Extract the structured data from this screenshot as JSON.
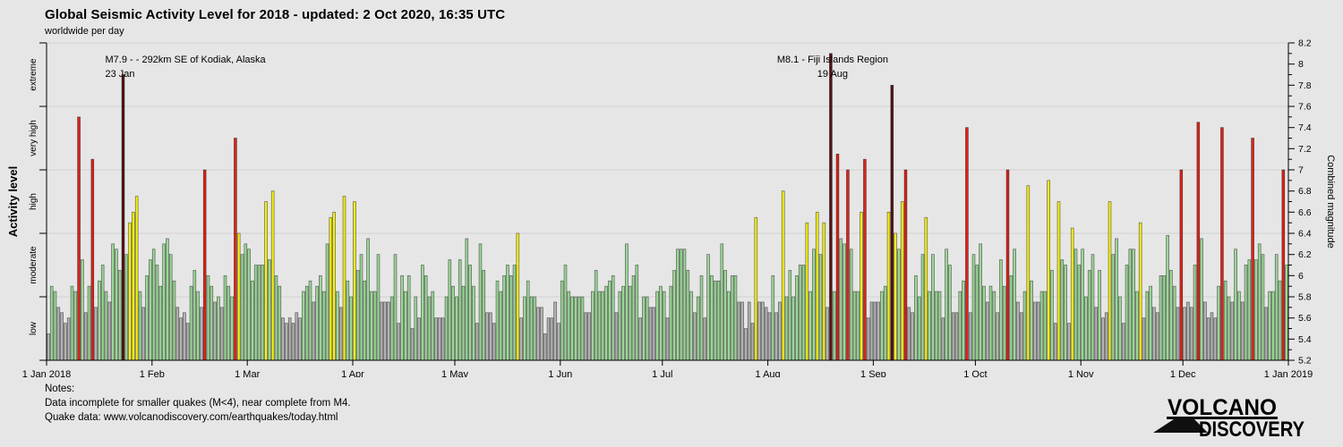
{
  "header": {
    "title": "Global Seismic Activity Level for 2018 - updated:  2 Oct 2020, 16:35 UTC",
    "subtitle": "worldwide per day"
  },
  "notes": {
    "label": "Notes:",
    "line1": "Data incomplete for smaller quakes (M<4), near complete from M4.",
    "line2": "Quake data: www.volcanodiscovery.com/earthquakes/today.html"
  },
  "logo": {
    "line1": "VOLCANO",
    "line2": "DISCOVERY",
    "red": "#c2232a",
    "black": "#101010"
  },
  "colors": {
    "background": "#e6e6e6",
    "grid": "#d2d2d2",
    "axis": "#000000",
    "bar_outline": "rgba(0,0,0,0.55)",
    "annotation_text": "#1a1a1a"
  },
  "chart_data": {
    "type": "bar",
    "title": "Global Seismic Activity Level for 2018",
    "subtitle": "worldwide per day",
    "x_axis": {
      "tick_labels": [
        "1 Jan 2018",
        "1 Feb",
        "1 Mar",
        "1 Apr",
        "1 May",
        "1 Jun",
        "1 Jul",
        "1 Aug",
        "1 Sep",
        "1 Oct",
        "1 Nov",
        "1 Dec",
        "1 Jan 2019"
      ],
      "tick_day_offsets": [
        0,
        31,
        59,
        90,
        120,
        151,
        181,
        212,
        243,
        273,
        304,
        334,
        365
      ]
    },
    "y_left": {
      "label": "Activity level",
      "categories": [
        "low",
        "moderate",
        "high",
        "very high",
        "extreme"
      ],
      "boundaries": [
        5.2,
        5.8,
        6.4,
        7.0,
        7.6,
        8.2
      ]
    },
    "y_right": {
      "label": "Combined magnitude",
      "min": 5.2,
      "max": 8.2,
      "major_step": 0.2,
      "minor_step": 0.1
    },
    "levels": [
      {
        "name": "low",
        "max": 5.8,
        "fill": "#b2b2b2"
      },
      {
        "name": "moderate",
        "max": 6.4,
        "fill": "#9bd697"
      },
      {
        "name": "high",
        "max": 7.0,
        "fill": "#f4ef19"
      },
      {
        "name": "very high",
        "max": 7.6,
        "fill": "#dc231a"
      },
      {
        "name": "extreme",
        "max": 99,
        "fill": "#571212"
      }
    ],
    "annotations": [
      {
        "label": "M7.9 - - 292km SE of Kodiak, Alaska",
        "date_label": "23 Jan",
        "day_index": 22,
        "align": "left"
      },
      {
        "label": "M8.1 - Fiji Islands Region",
        "date_label": "19 Aug",
        "day_index": 230,
        "align": "center"
      }
    ],
    "grid": true,
    "values": [
      5.45,
      5.9,
      5.85,
      5.7,
      5.65,
      5.55,
      5.6,
      5.9,
      5.85,
      7.5,
      6.15,
      5.65,
      5.9,
      7.1,
      5.7,
      5.95,
      6.1,
      5.85,
      5.75,
      6.3,
      6.25,
      6.05,
      7.9,
      6.2,
      6.5,
      6.6,
      6.75,
      5.85,
      5.7,
      6.0,
      6.15,
      6.25,
      6.1,
      5.9,
      6.3,
      6.35,
      6.2,
      5.95,
      5.7,
      5.6,
      5.65,
      5.55,
      5.9,
      6.05,
      5.85,
      5.7,
      7.0,
      6.0,
      5.9,
      5.75,
      5.8,
      5.7,
      6.0,
      5.9,
      5.8,
      7.3,
      6.4,
      6.2,
      6.3,
      6.25,
      5.95,
      6.1,
      6.1,
      6.1,
      6.7,
      6.15,
      6.8,
      6.0,
      5.9,
      5.6,
      5.55,
      5.6,
      5.55,
      5.65,
      5.6,
      5.85,
      5.9,
      5.95,
      5.75,
      5.9,
      6.0,
      5.85,
      6.3,
      6.55,
      6.6,
      5.85,
      5.7,
      6.75,
      5.95,
      5.8,
      6.7,
      6.05,
      6.2,
      5.95,
      6.35,
      5.85,
      5.85,
      6.2,
      5.75,
      5.75,
      5.75,
      5.8,
      6.2,
      5.55,
      6.0,
      5.85,
      6.0,
      5.5,
      5.8,
      5.6,
      6.1,
      6.0,
      5.8,
      5.85,
      5.6,
      5.6,
      5.6,
      5.8,
      6.15,
      5.9,
      5.8,
      6.15,
      5.9,
      6.35,
      6.1,
      5.9,
      5.55,
      6.3,
      6.05,
      5.65,
      5.65,
      5.55,
      5.95,
      5.85,
      6.0,
      6.1,
      6.0,
      6.1,
      6.4,
      5.6,
      5.8,
      5.95,
      5.8,
      5.8,
      5.7,
      5.7,
      5.45,
      5.6,
      5.6,
      5.75,
      5.55,
      5.95,
      6.1,
      5.85,
      5.8,
      5.8,
      5.8,
      5.8,
      5.65,
      5.65,
      5.85,
      6.05,
      5.85,
      5.85,
      5.9,
      5.95,
      6.0,
      5.65,
      5.85,
      5.9,
      6.3,
      5.9,
      6.0,
      6.1,
      5.6,
      5.8,
      5.8,
      5.7,
      5.7,
      5.85,
      5.9,
      5.85,
      5.6,
      5.9,
      6.05,
      6.25,
      6.25,
      6.25,
      6.05,
      5.85,
      5.65,
      5.8,
      6.0,
      5.6,
      6.2,
      6.0,
      5.95,
      5.95,
      6.3,
      6.05,
      5.85,
      6.0,
      6.0,
      5.75,
      5.75,
      5.5,
      5.75,
      5.55,
      6.55,
      5.75,
      5.75,
      5.7,
      5.65,
      6.0,
      5.65,
      5.75,
      6.8,
      5.8,
      6.05,
      5.8,
      6.0,
      6.1,
      6.1,
      6.5,
      5.85,
      6.25,
      6.6,
      6.2,
      6.5,
      5.7,
      8.1,
      5.85,
      7.15,
      6.35,
      6.3,
      7.0,
      6.25,
      5.85,
      5.85,
      6.6,
      7.1,
      5.6,
      5.75,
      5.75,
      5.75,
      5.85,
      5.9,
      6.6,
      7.8,
      6.4,
      6.25,
      6.7,
      7.0,
      5.7,
      5.65,
      6.0,
      5.8,
      6.2,
      6.55,
      5.85,
      6.2,
      5.85,
      5.85,
      5.6,
      6.25,
      6.1,
      5.65,
      5.65,
      5.85,
      5.95,
      7.4,
      5.65,
      6.2,
      6.1,
      6.3,
      5.9,
      5.75,
      5.9,
      5.85,
      5.65,
      6.15,
      5.9,
      7.0,
      6.0,
      6.25,
      5.75,
      5.65,
      5.85,
      6.85,
      5.95,
      5.75,
      5.75,
      5.85,
      5.85,
      6.9,
      6.05,
      5.55,
      6.7,
      6.15,
      6.1,
      5.55,
      6.45,
      6.25,
      6.1,
      6.25,
      5.8,
      6.05,
      6.2,
      5.7,
      6.05,
      5.6,
      5.65,
      6.7,
      6.2,
      6.35,
      5.8,
      5.55,
      6.1,
      6.25,
      6.25,
      5.85,
      6.5,
      5.6,
      5.85,
      5.9,
      5.7,
      5.65,
      6.0,
      6.0,
      6.38,
      6.05,
      5.9,
      5.7,
      7.0,
      5.7,
      5.75,
      5.7,
      6.1,
      7.45,
      6.35,
      5.75,
      5.6,
      5.65,
      5.6,
      5.9,
      7.4,
      5.95,
      5.8,
      5.75,
      6.25,
      5.85,
      5.75,
      6.1,
      6.15,
      7.3,
      6.15,
      6.3,
      6.2,
      5.7,
      5.85,
      5.85,
      6.2,
      5.95,
      7.0,
      6.1
    ]
  }
}
